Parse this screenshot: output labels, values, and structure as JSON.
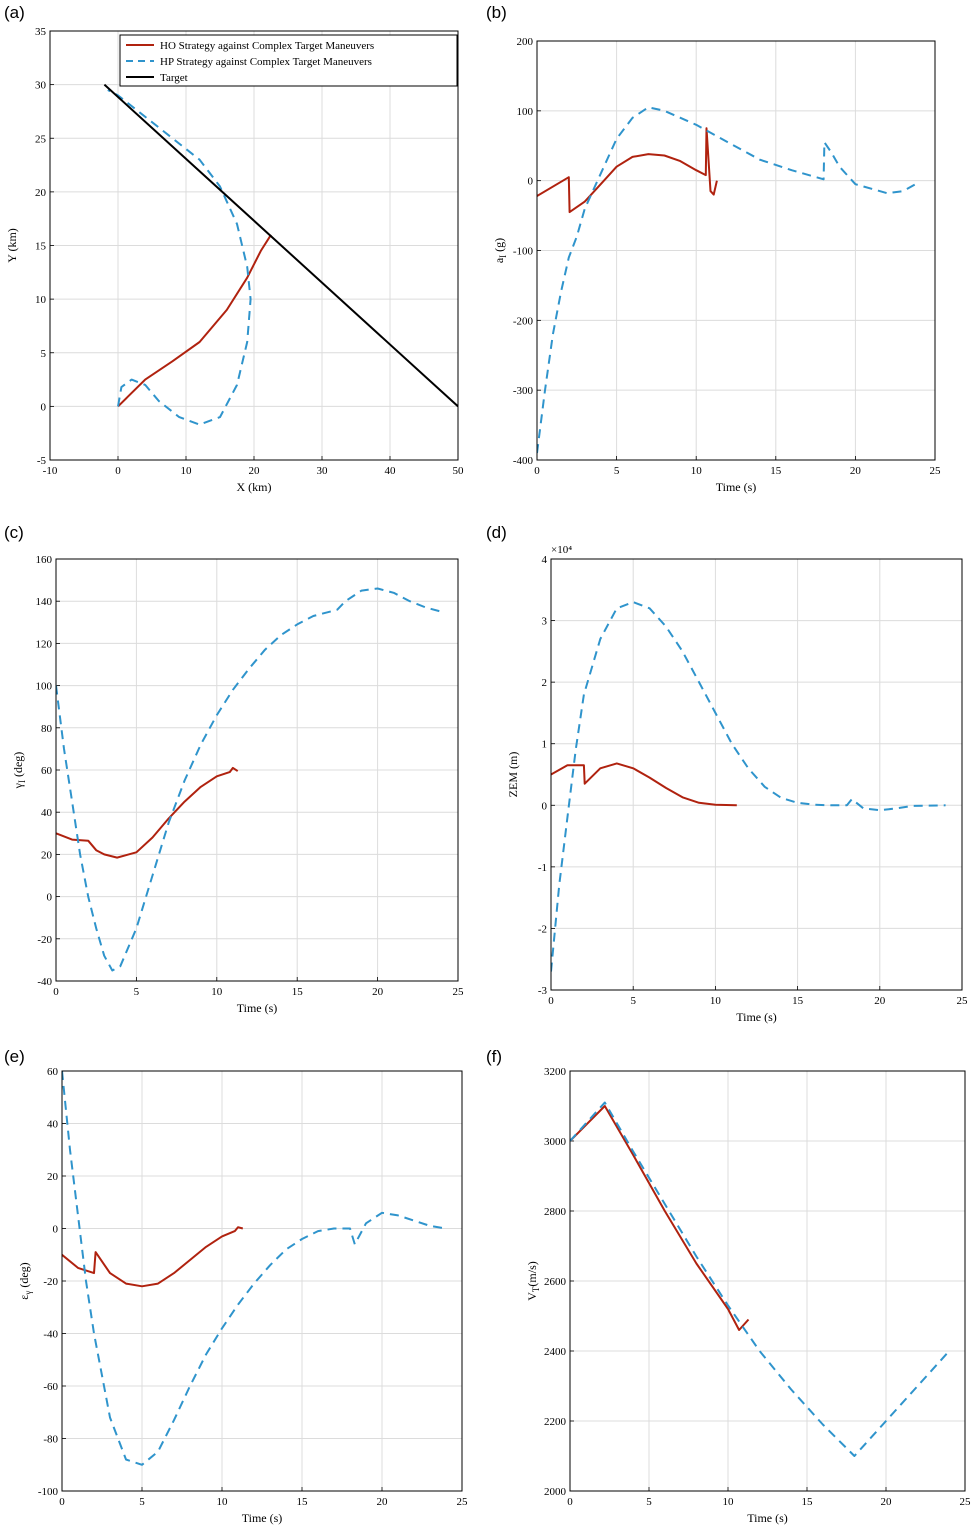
{
  "colors": {
    "ho": "#b0220f",
    "hp": "#2f94cc",
    "target": "#000000",
    "grid": "#dcdcdc"
  },
  "legend": [
    {
      "label": "HO Strategy against Complex Target Maneuvers",
      "color": "#b0220f",
      "style": "solid"
    },
    {
      "label": "HP Strategy against Complex Target Maneuvers",
      "color": "#2f94cc",
      "style": "dashed"
    },
    {
      "label": "Target",
      "color": "#000000",
      "style": "solid"
    }
  ],
  "chart_data": [
    {
      "panel": "(a)",
      "type": "line",
      "xlabel": "X (km)",
      "ylabel": "Y (km)",
      "xlim": [
        -10,
        50
      ],
      "ylim": [
        -5,
        35
      ],
      "xticks": [
        "-10",
        "0",
        "10",
        "20",
        "30",
        "40",
        "50"
      ],
      "yticks": [
        "-5",
        "0",
        "5",
        "10",
        "15",
        "20",
        "25",
        "30",
        "35"
      ],
      "grid": true,
      "legend_position": "top-right",
      "series": [
        {
          "name": "HO Strategy against Complex Target Maneuvers",
          "style": "solid",
          "x": [
            0,
            4,
            8,
            12,
            16,
            19,
            21,
            22.5
          ],
          "y": [
            0,
            2.5,
            4.2,
            6,
            9,
            12,
            14.5,
            16
          ]
        },
        {
          "name": "HP Strategy against Complex Target Maneuvers",
          "style": "dashed",
          "x": [
            0,
            0.5,
            2,
            4,
            6,
            9,
            12,
            15,
            17.5,
            19,
            19.5,
            19,
            17.5,
            15,
            12,
            9,
            6,
            3,
            0,
            -1.5
          ],
          "y": [
            0,
            1.8,
            2.5,
            2,
            0.5,
            -1,
            -1.7,
            -1,
            2,
            6,
            10,
            13,
            17,
            20.5,
            23,
            24.5,
            26,
            27.5,
            29,
            29.5
          ]
        },
        {
          "name": "Target",
          "style": "solid",
          "x": [
            -2,
            50
          ],
          "y": [
            30,
            0
          ]
        }
      ]
    },
    {
      "panel": "(b)",
      "type": "line",
      "xlabel": "Time (s)",
      "ylabel": "a_I (g)",
      "xlim": [
        0,
        25
      ],
      "ylim": [
        -400,
        200
      ],
      "xticks": [
        "0",
        "5",
        "10",
        "15",
        "20",
        "25"
      ],
      "yticks": [
        "-400",
        "-300",
        "-200",
        "-100",
        "0",
        "100",
        "200"
      ],
      "grid": true,
      "series": [
        {
          "name": "HO Strategy against Complex Target Maneuvers",
          "style": "solid",
          "x": [
            0,
            2,
            2.05,
            3,
            4,
            5,
            6,
            7,
            8,
            9,
            10,
            10.6,
            10.65,
            10.9,
            11.1,
            11.3
          ],
          "y": [
            -22,
            5,
            -45,
            -30,
            -5,
            20,
            34,
            38,
            36,
            28,
            15,
            8,
            75,
            -15,
            -20,
            0
          ]
        },
        {
          "name": "HP Strategy against Complex Target Maneuvers",
          "style": "dashed",
          "x": [
            0,
            0.5,
            1,
            1.5,
            2,
            2.5,
            3,
            4,
            5,
            6,
            7,
            8,
            10,
            12,
            14,
            16,
            18,
            18.05,
            18.5,
            19,
            20,
            22,
            23,
            24
          ],
          "y": [
            -390,
            -300,
            -220,
            -160,
            -110,
            -80,
            -40,
            10,
            60,
            90,
            105,
            100,
            80,
            55,
            30,
            15,
            2,
            55,
            40,
            20,
            -5,
            -18,
            -15,
            -2
          ]
        }
      ]
    },
    {
      "panel": "(c)",
      "type": "line",
      "xlabel": "Time (s)",
      "ylabel": "γ_I (deg)",
      "xlim": [
        0,
        25
      ],
      "ylim": [
        -40,
        160
      ],
      "xticks": [
        "0",
        "5",
        "10",
        "15",
        "20",
        "25"
      ],
      "yticks": [
        "-40",
        "-20",
        "0",
        "20",
        "40",
        "60",
        "80",
        "100",
        "120",
        "140",
        "160"
      ],
      "grid": true,
      "series": [
        {
          "name": "HO Strategy against Complex Target Maneuvers",
          "style": "solid",
          "x": [
            0,
            1,
            2,
            2.5,
            3,
            3.8,
            5,
            6,
            7,
            8,
            9,
            10,
            10.8,
            11,
            11.3
          ],
          "y": [
            30,
            27,
            26.5,
            22,
            20,
            18.5,
            21,
            28,
            37,
            45,
            52,
            57,
            59,
            61,
            59.5
          ]
        },
        {
          "name": "HP Strategy against Complex Target Maneuvers",
          "style": "dashed",
          "x": [
            0,
            0.5,
            1,
            1.5,
            2,
            2.5,
            3,
            3.5,
            4,
            5,
            6,
            7,
            8,
            9,
            10,
            11,
            12,
            13,
            14,
            15,
            16,
            17,
            17.5,
            18,
            19,
            20,
            21,
            22,
            23,
            24
          ],
          "y": [
            100,
            70,
            45,
            20,
            0,
            -15,
            -28,
            -35,
            -33,
            -15,
            10,
            35,
            55,
            72,
            86,
            98,
            108,
            117,
            124,
            129,
            133,
            135,
            136,
            140,
            145,
            146,
            144,
            140,
            137,
            135
          ]
        }
      ]
    },
    {
      "panel": "(d)",
      "type": "line",
      "xlabel": "Time (s)",
      "ylabel": "ZEM (m)",
      "multiplier": "×10⁴",
      "xlim": [
        0,
        25
      ],
      "ylim": [
        -3,
        4
      ],
      "xticks": [
        "0",
        "5",
        "10",
        "15",
        "20",
        "25"
      ],
      "yticks": [
        "-3",
        "-2",
        "-1",
        "0",
        "1",
        "2",
        "3",
        "4"
      ],
      "grid": true,
      "series": [
        {
          "name": "HO Strategy against Complex Target Maneuvers",
          "style": "solid",
          "x": [
            0,
            1,
            2,
            2.05,
            3,
            4,
            5,
            6,
            7,
            8,
            9,
            10,
            11.3
          ],
          "y": [
            0.5,
            0.65,
            0.65,
            0.35,
            0.6,
            0.68,
            0.6,
            0.45,
            0.28,
            0.13,
            0.04,
            0.01,
            0
          ]
        },
        {
          "name": "HP Strategy against Complex Target Maneuvers",
          "style": "dashed",
          "x": [
            0,
            0.5,
            1,
            1.5,
            2,
            3,
            4,
            5,
            6,
            7,
            8,
            9,
            10,
            11,
            12,
            13,
            14,
            15,
            16,
            17,
            18,
            18.3,
            19,
            20,
            21,
            22,
            24
          ],
          "y": [
            -2.7,
            -1.3,
            -0.2,
            0.9,
            1.8,
            2.7,
            3.2,
            3.3,
            3.2,
            2.9,
            2.5,
            2.0,
            1.5,
            1.0,
            0.6,
            0.3,
            0.12,
            0.04,
            0.01,
            0,
            0,
            0.1,
            -0.05,
            -0.08,
            -0.05,
            -0.01,
            0
          ]
        }
      ]
    },
    {
      "panel": "(e)",
      "type": "line",
      "xlabel": "Time (s)",
      "ylabel": "ε_γ (deg)",
      "xlim": [
        0,
        25
      ],
      "ylim": [
        -100,
        60
      ],
      "xticks": [
        "0",
        "5",
        "10",
        "15",
        "20",
        "25"
      ],
      "yticks": [
        "-100",
        "-80",
        "-60",
        "-40",
        "-20",
        "0",
        "20",
        "40",
        "60"
      ],
      "grid": true,
      "series": [
        {
          "name": "HO Strategy against Complex Target Maneuvers",
          "style": "solid",
          "x": [
            0,
            1,
            2,
            2.1,
            3,
            4,
            5,
            6,
            7,
            8,
            9,
            10,
            10.8,
            11,
            11.3
          ],
          "y": [
            -10,
            -15,
            -17,
            -9,
            -17,
            -21,
            -22,
            -21,
            -17,
            -12,
            -7,
            -3,
            -1,
            0.5,
            0
          ]
        },
        {
          "name": "HP Strategy against Complex Target Maneuvers",
          "style": "dashed",
          "x": [
            0,
            0.5,
            1,
            1.5,
            2,
            3,
            4,
            5,
            6,
            7,
            8,
            9,
            10,
            11,
            12,
            13,
            14,
            15,
            16,
            17,
            18,
            18.3,
            19,
            20,
            21,
            22,
            23,
            24
          ],
          "y": [
            60,
            30,
            5,
            -20,
            -40,
            -72,
            -88,
            -90,
            -85,
            -73,
            -60,
            -48,
            -38,
            -29,
            -21,
            -14,
            -8,
            -4,
            -1,
            0,
            0,
            -6,
            2,
            6,
            5,
            3,
            1,
            0
          ]
        }
      ]
    },
    {
      "panel": "(f)",
      "type": "line",
      "xlabel": "Time (s)",
      "ylabel": "V_T(m/s)",
      "xlim": [
        0,
        25
      ],
      "ylim": [
        2000,
        3200
      ],
      "xticks": [
        "0",
        "5",
        "10",
        "15",
        "20",
        "25"
      ],
      "yticks": [
        "2000",
        "2200",
        "2400",
        "2600",
        "2800",
        "3000",
        "3200"
      ],
      "grid": true,
      "series": [
        {
          "name": "HO Strategy against Complex Target Maneuvers",
          "style": "solid",
          "x": [
            0,
            2.2,
            4,
            6,
            8,
            10,
            10.7,
            11.3
          ],
          "y": [
            3000,
            3100,
            2960,
            2800,
            2650,
            2520,
            2460,
            2490
          ]
        },
        {
          "name": "HP Strategy against Complex Target Maneuvers",
          "style": "dashed",
          "x": [
            0,
            2.2,
            4,
            6,
            8,
            10,
            12,
            14,
            16,
            18,
            20,
            22,
            24
          ],
          "y": [
            3000,
            3110,
            2970,
            2820,
            2670,
            2530,
            2400,
            2290,
            2190,
            2100,
            2200,
            2300,
            2400
          ]
        }
      ]
    }
  ]
}
